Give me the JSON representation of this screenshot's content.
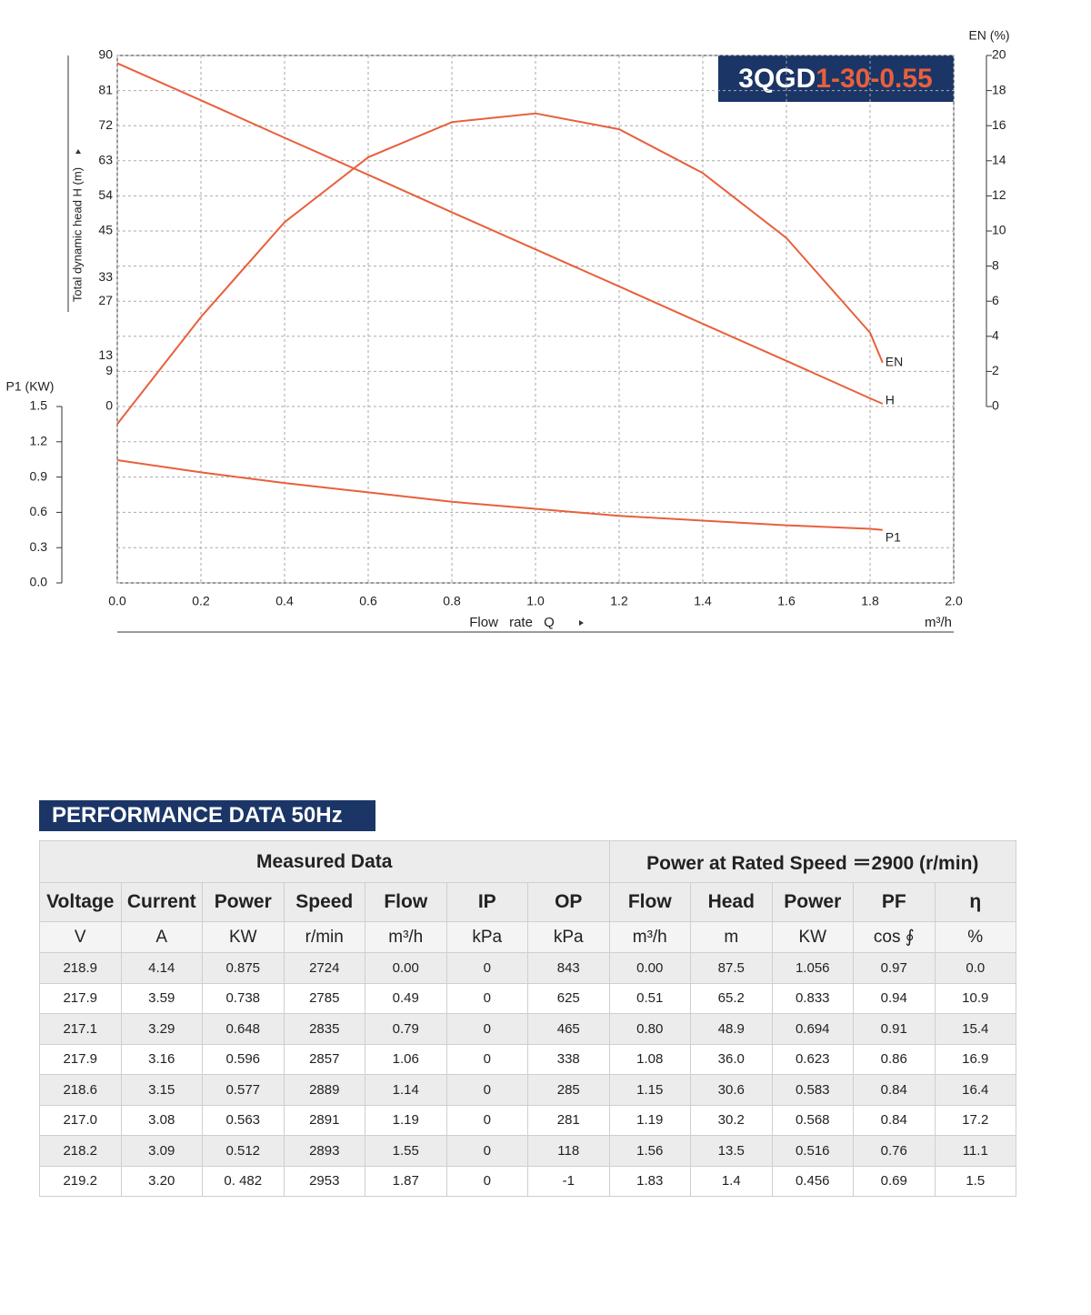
{
  "chart_data": {
    "type": "line",
    "title": [
      "3QGD",
      "1-30-0.55"
    ],
    "xlabel": "Flow rate Q",
    "xunit": "m³/h",
    "ylabel": "Total dynamic head H (m)",
    "y2label": "EN (%)",
    "y3label": "P1 (KW)",
    "x": [
      0,
      0.2,
      0.4,
      0.6,
      0.8,
      1.0,
      1.2,
      1.4,
      1.6,
      1.8,
      1.83
    ],
    "xlim": [
      0,
      2
    ],
    "xticks": [
      {
        "value": 0,
        "label": "0.0"
      },
      0.2,
      0.4,
      0.6,
      0.8,
      {
        "value": 1,
        "label": "1.0"
      },
      1.2,
      1.4,
      1.6,
      1.8,
      {
        "value": 2,
        "label": "2.0"
      }
    ],
    "ylim": [
      0,
      90
    ],
    "yticks": [
      0,
      9,
      13,
      27,
      33,
      45,
      54,
      63,
      72,
      81,
      90
    ],
    "y2lim": [
      0,
      20
    ],
    "y2ticks": [
      0,
      2,
      4,
      6,
      8,
      10,
      12,
      14,
      16,
      18,
      20
    ],
    "y3lim": [
      0,
      1.5
    ],
    "y3ticks": [
      {
        "value": 0,
        "label": "0.0"
      },
      0.3,
      0.6,
      0.9,
      1.2,
      1.5
    ],
    "grid": true,
    "series": [
      {
        "name": "H",
        "color": "#e8603c",
        "values": [
          88,
          78.5,
          68.9,
          59.4,
          49.8,
          40.3,
          30.8,
          21.2,
          11.7,
          2.1,
          0.7
        ]
      },
      {
        "name": "EN",
        "color": "#e8603c",
        "axis": "y2",
        "values": [
          -1,
          5.1,
          10.5,
          14.2,
          16.2,
          16.7,
          15.8,
          13.3,
          9.6,
          4.2,
          2.5
        ]
      },
      {
        "name": "P1",
        "color": "#e8603c",
        "axis": "y3",
        "values": [
          1.044,
          0.94,
          0.85,
          0.77,
          0.69,
          0.63,
          0.57,
          0.53,
          0.49,
          0.46,
          0.45
        ]
      }
    ]
  },
  "table": {
    "title": "PERFORMANCE DATA 50Hz",
    "groups": [
      "Measured Data",
      "Power at Rated Speed ＝2900 (r/min)"
    ],
    "headers": [
      "Voltage",
      "Current",
      "Power",
      "Speed",
      "Flow",
      "IP",
      "OP",
      "Flow",
      "Head",
      "Power",
      "PF",
      "η"
    ],
    "units": [
      "V",
      "A",
      "KW",
      "r/min",
      "m³/h",
      "kPa",
      "kPa",
      "m³/h",
      "m",
      "KW",
      "cos ∮",
      "%"
    ],
    "rows": [
      [
        "218.9",
        "4.14",
        "0.875",
        "2724",
        "0.00",
        "0",
        "843",
        "0.00",
        "87.5",
        "1.056",
        "0.97",
        "0.0"
      ],
      [
        "217.9",
        "3.59",
        "0.738",
        "2785",
        "0.49",
        "0",
        "625",
        "0.51",
        "65.2",
        "0.833",
        "0.94",
        "10.9"
      ],
      [
        "217.1",
        "3.29",
        "0.648",
        "2835",
        "0.79",
        "0",
        "465",
        "0.80",
        "48.9",
        "0.694",
        "0.91",
        "15.4"
      ],
      [
        "217.9",
        "3.16",
        "0.596",
        "2857",
        "1.06",
        "0",
        "338",
        "1.08",
        "36.0",
        "0.623",
        "0.86",
        "16.9"
      ],
      [
        "218.6",
        "3.15",
        "0.577",
        "2889",
        "1.14",
        "0",
        "285",
        "1.15",
        "30.6",
        "0.583",
        "0.84",
        "16.4"
      ],
      [
        "217.0",
        "3.08",
        "0.563",
        "2891",
        "1.19",
        "0",
        "281",
        "1.19",
        "30.2",
        "0.568",
        "0.84",
        "17.2"
      ],
      [
        "218.2",
        "3.09",
        "0.512",
        "2893",
        "1.55",
        "0",
        "118",
        "1.56",
        "13.5",
        "0.516",
        "0.76",
        "11.1"
      ],
      [
        "219.2",
        "3.20",
        "0. 482",
        "2953",
        "1.87",
        "0",
        "-1",
        "1.83",
        "1.4",
        "0.456",
        "0.69",
        "1.5"
      ]
    ]
  }
}
